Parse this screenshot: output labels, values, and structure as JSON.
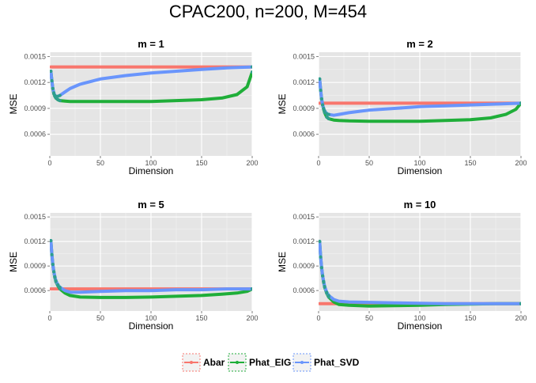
{
  "title": "CPAC200, n=200, M=454",
  "colors": {
    "panel_bg": "#e5e5e5",
    "grid_major": "#ffffff",
    "grid_minor": "#f2f2f2",
    "abar": "#f8766d",
    "phat_eig": "#1fae39",
    "phat_svd": "#6995fc",
    "point": "#2e9e8e"
  },
  "legend": {
    "position": "bottom",
    "items": [
      {
        "label": "Abar",
        "color": "#f8766d"
      },
      {
        "label": "Phat_EIG",
        "color": "#1fae39"
      },
      {
        "label": "Phat_SVD",
        "color": "#6995fc"
      }
    ]
  },
  "chart_data": [
    {
      "type": "line",
      "title": "m = 1",
      "xlabel": "Dimension",
      "ylabel": "MSE",
      "xlim": [
        0,
        200
      ],
      "ylim": [
        0.00035,
        0.00155
      ],
      "xticks": [
        "0",
        "50",
        "100",
        "150",
        "200"
      ],
      "yticks": [
        "0.0006",
        "0.0009",
        "0.0012",
        "0.0015"
      ],
      "grid": true,
      "series": [
        {
          "name": "Abar",
          "x": [
            1,
            200
          ],
          "y": [
            0.00138,
            0.00138
          ]
        },
        {
          "name": "Phat_EIG",
          "x": [
            1,
            2,
            3,
            4,
            5,
            6,
            8,
            10,
            15,
            20,
            30,
            50,
            75,
            100,
            125,
            150,
            170,
            185,
            195,
            200
          ],
          "y": [
            0.00133,
            0.00122,
            0.00113,
            0.00107,
            0.00104,
            0.00102,
            0.001,
            0.00099,
            0.000985,
            0.00098,
            0.00098,
            0.00098,
            0.00098,
            0.00098,
            0.00099,
            0.001,
            0.00102,
            0.00106,
            0.00115,
            0.00132
          ]
        },
        {
          "name": "Phat_SVD",
          "x": [
            1,
            2,
            3,
            4,
            5,
            6,
            8,
            10,
            15,
            20,
            30,
            50,
            75,
            100,
            125,
            150,
            175,
            200
          ],
          "y": [
            0.00133,
            0.00122,
            0.00113,
            0.00108,
            0.00105,
            0.00104,
            0.00104,
            0.00105,
            0.00109,
            0.00113,
            0.00118,
            0.00124,
            0.00128,
            0.00131,
            0.00133,
            0.00135,
            0.00137,
            0.00138
          ]
        }
      ]
    },
    {
      "type": "line",
      "title": "m = 2",
      "xlabel": "Dimension",
      "ylabel": "MSE",
      "xlim": [
        0,
        200
      ],
      "ylim": [
        0.00035,
        0.00155
      ],
      "xticks": [
        "0",
        "50",
        "100",
        "150",
        "200"
      ],
      "yticks": [
        "0.0006",
        "0.0009",
        "0.0012",
        "0.0015"
      ],
      "grid": true,
      "series": [
        {
          "name": "Abar",
          "x": [
            1,
            200
          ],
          "y": [
            0.00096,
            0.00096
          ]
        },
        {
          "name": "Phat_EIG",
          "x": [
            1,
            2,
            3,
            4,
            5,
            6,
            8,
            10,
            15,
            20,
            30,
            50,
            75,
            100,
            125,
            150,
            170,
            185,
            195,
            200
          ],
          "y": [
            0.00124,
            0.00111,
            0.00101,
            0.00094,
            0.00089,
            0.00085,
            0.0008,
            0.00078,
            0.000765,
            0.00076,
            0.000755,
            0.00075,
            0.00075,
            0.00075,
            0.00076,
            0.00077,
            0.00079,
            0.00083,
            0.00089,
            0.00096
          ]
        },
        {
          "name": "Phat_SVD",
          "x": [
            1,
            2,
            3,
            4,
            5,
            6,
            8,
            10,
            15,
            20,
            30,
            50,
            75,
            100,
            125,
            150,
            175,
            200
          ],
          "y": [
            0.00124,
            0.00111,
            0.00101,
            0.00094,
            0.0009,
            0.00087,
            0.00084,
            0.00083,
            0.00082,
            0.00083,
            0.00085,
            0.00088,
            0.0009,
            0.00092,
            0.00093,
            0.00094,
            0.00095,
            0.00096
          ]
        }
      ]
    },
    {
      "type": "line",
      "title": "m = 5",
      "xlabel": "Dimension",
      "ylabel": "MSE",
      "xlim": [
        0,
        200
      ],
      "ylim": [
        0.00035,
        0.00155
      ],
      "xticks": [
        "0",
        "50",
        "100",
        "150",
        "200"
      ],
      "yticks": [
        "0.0006",
        "0.0009",
        "0.0012",
        "0.0015"
      ],
      "grid": true,
      "series": [
        {
          "name": "Abar",
          "x": [
            1,
            200
          ],
          "y": [
            0.00062,
            0.00062
          ]
        },
        {
          "name": "Phat_EIG",
          "x": [
            1,
            2,
            3,
            4,
            5,
            6,
            8,
            10,
            15,
            20,
            30,
            50,
            75,
            100,
            125,
            150,
            170,
            185,
            195,
            200
          ],
          "y": [
            0.00121,
            0.00104,
            0.00092,
            0.00083,
            0.00076,
            0.00071,
            0.00066,
            0.00062,
            0.00057,
            0.00054,
            0.00052,
            0.000515,
            0.000515,
            0.00052,
            0.00053,
            0.00054,
            0.000555,
            0.00057,
            0.00059,
            0.00062
          ]
        },
        {
          "name": "Phat_SVD",
          "x": [
            1,
            2,
            3,
            4,
            5,
            6,
            8,
            10,
            15,
            20,
            30,
            50,
            75,
            100,
            125,
            150,
            175,
            200
          ],
          "y": [
            0.00121,
            0.00104,
            0.00092,
            0.00083,
            0.00077,
            0.00072,
            0.00067,
            0.00064,
            0.0006,
            0.00058,
            0.00058,
            0.00059,
            0.0006,
            0.0006,
            0.00061,
            0.00061,
            0.00062,
            0.00062
          ]
        }
      ]
    },
    {
      "type": "line",
      "title": "m = 10",
      "xlabel": "Dimension",
      "ylabel": "MSE",
      "xlim": [
        0,
        200
      ],
      "ylim": [
        0.00035,
        0.00155
      ],
      "xticks": [
        "0",
        "50",
        "100",
        "150",
        "200"
      ],
      "yticks": [
        "0.0006",
        "0.0009",
        "0.0012",
        "0.0015"
      ],
      "grid": true,
      "series": [
        {
          "name": "Abar",
          "x": [
            1,
            200
          ],
          "y": [
            0.00044,
            0.00044
          ]
        },
        {
          "name": "Phat_EIG",
          "x": [
            1,
            2,
            3,
            4,
            5,
            6,
            8,
            10,
            15,
            20,
            30,
            50,
            75,
            100,
            125,
            150,
            175,
            200
          ],
          "y": [
            0.0012,
            0.00101,
            0.00088,
            0.00078,
            0.0007,
            0.00064,
            0.00057,
            0.00052,
            0.00046,
            0.00043,
            0.00042,
            0.00041,
            0.000415,
            0.00042,
            0.00043,
            0.000435,
            0.00044,
            0.00044
          ]
        },
        {
          "name": "Phat_SVD",
          "x": [
            1,
            2,
            3,
            4,
            5,
            6,
            8,
            10,
            15,
            20,
            30,
            50,
            75,
            100,
            125,
            150,
            175,
            200
          ],
          "y": [
            0.0012,
            0.00101,
            0.00088,
            0.00078,
            0.00071,
            0.00065,
            0.00058,
            0.00054,
            0.00049,
            0.00047,
            0.00046,
            0.000455,
            0.00045,
            0.000445,
            0.00044,
            0.00044,
            0.00044,
            0.00044
          ]
        }
      ]
    }
  ]
}
